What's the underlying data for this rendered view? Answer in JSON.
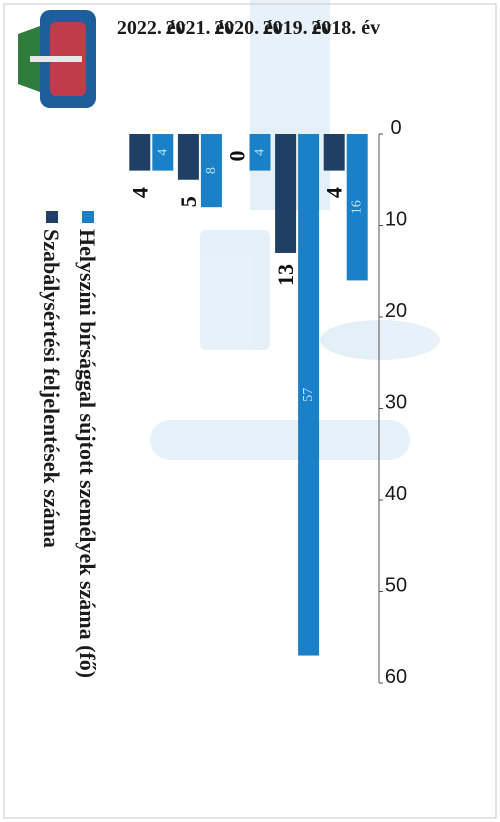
{
  "chart_data": {
    "type": "bar",
    "categories": [
      "2018. év",
      "2019. év",
      "2020. év",
      "2021. év",
      "2022. év"
    ],
    "series": [
      {
        "name": "Szabálysértési feljelentések száma",
        "color": "#1f3f66",
        "values": [
          4,
          13,
          0,
          5,
          4
        ]
      },
      {
        "name": "Helyszíni bírsággal sújtott személyek száma (fő)",
        "color": "#1a80c8",
        "values": [
          16,
          57,
          4,
          8,
          4
        ]
      }
    ],
    "ylim": [
      0,
      60
    ],
    "yticks": [
      0,
      10,
      20,
      30,
      40,
      50,
      60
    ],
    "grid": false,
    "legend_position": "top",
    "orientation": "rotated 90 degrees clockwise on the page",
    "title": "",
    "xlabel": "",
    "ylabel": ""
  },
  "emblem": {
    "icon": "municipal-coat-of-arms-icon"
  }
}
